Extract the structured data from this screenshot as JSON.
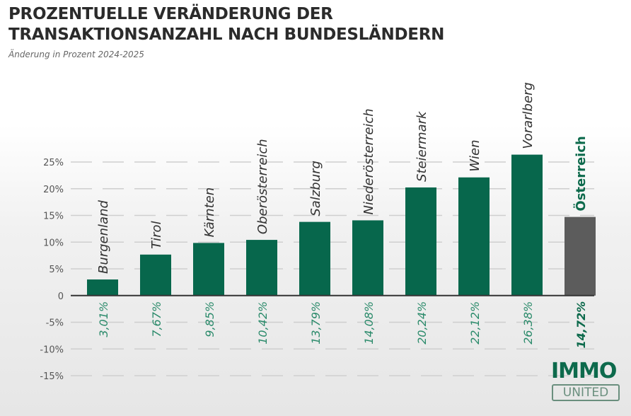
{
  "chart_data": {
    "type": "bar",
    "title_line1": "PROZENTUELLE VERÄNDERUNG DER",
    "title_line2": "TRANSAKTIONSANZAHL NACH BUNDESLÄNDERN",
    "subtitle": "Änderung in Prozent 2024-2025",
    "xlabel": "",
    "ylabel": "",
    "ylim": [
      -15,
      25
    ],
    "y_ticks": [
      25,
      20,
      15,
      10,
      5,
      0,
      -5,
      -10,
      -15
    ],
    "y_tick_labels": [
      "25%",
      "20%",
      "15%",
      "10%",
      "5%",
      "0",
      "-5%",
      "-10%",
      "-15%"
    ],
    "grid": true,
    "categories": [
      "Burgenland",
      "Tirol",
      "Kärnten",
      "Oberösterreich",
      "Salzburg",
      "Niederösterreich",
      "Steiermark",
      "Wien",
      "Vorarlberg",
      "Österreich"
    ],
    "values": [
      3.01,
      7.67,
      9.85,
      10.42,
      13.79,
      14.08,
      20.24,
      22.12,
      26.38,
      14.72
    ],
    "value_labels": [
      "3,01%",
      "7,67%",
      "9,85%",
      "10,42%",
      "13,79%",
      "14,08%",
      "20,24%",
      "22,12%",
      "26,38%",
      "14,72%"
    ],
    "highlight_index": 9,
    "colors": {
      "bar": "#07674c",
      "highlight_bar": "#5c5c5c",
      "value_label": "#2a8a6a",
      "highlight_label": "#0d6a4c",
      "category_label": "#333333",
      "axis": "#333333",
      "grid": "#cfcfcf"
    }
  },
  "logo": {
    "line1": "IMMO",
    "line2": "UNITED"
  }
}
